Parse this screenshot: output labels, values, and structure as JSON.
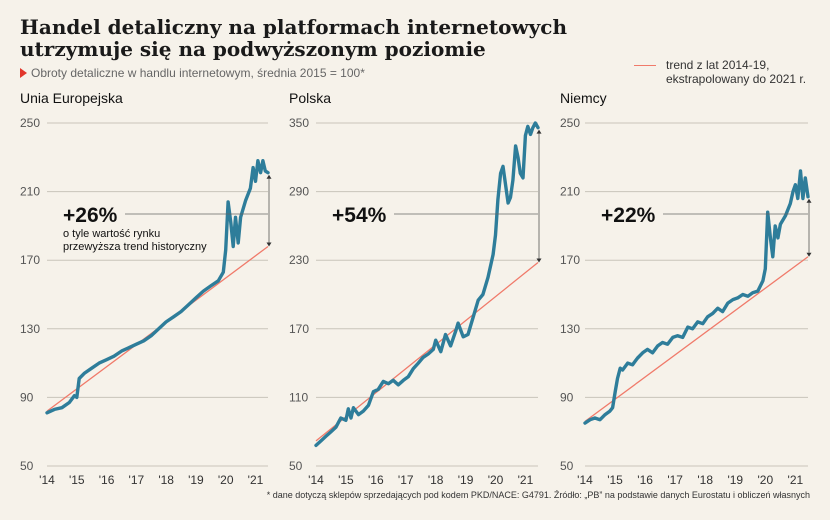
{
  "header": {
    "title": "Handel detaliczny na platformach internetowych utrzymuje się na podwyższonym poziomie",
    "subtitle": "Obroty detaliczne w handlu internetowym, średnia 2015 = 100*",
    "legend": "trend z lat 2014-19, ekstrapolowany do 2021 r."
  },
  "footnote": "* dane dotyczą sklepów sprzedających pod kodem PKD/NACE: G4791. Źródło: „PB” na podstawie danych Eurostatu i obliczeń własnych",
  "colors": {
    "series": "#2e7d9a",
    "trend": "#f07a6a",
    "grid": "#c9c4ba",
    "accent": "#e2362b",
    "background": "#f6f2ea"
  },
  "chart_data": [
    {
      "type": "line",
      "title": "Unia Europejska",
      "x_ticks": [
        "'14",
        "'15",
        "'16",
        "'17",
        "'18",
        "'19",
        "'20",
        "'21"
      ],
      "y_ticks": [
        50,
        90,
        130,
        170,
        210,
        250
      ],
      "ylim": [
        50,
        250
      ],
      "annotation": {
        "value": "+26%",
        "text_lines": [
          "o tyle wartość rynku",
          "przewyższa trend historyczny"
        ]
      },
      "trend": {
        "name": "trend z lat 2014-19, ekstrapolowany do 2021 r.",
        "x": [
          2014.0,
          2021.42
        ],
        "y": [
          82,
          178
        ]
      },
      "series": [
        {
          "x": [
            2014.0,
            2014.25,
            2014.5,
            2014.75,
            2014.92,
            2015.0,
            2015.08,
            2015.25,
            2015.5,
            2015.75,
            2016.0,
            2016.25,
            2016.5,
            2016.75,
            2017.0,
            2017.25,
            2017.5,
            2017.75,
            2018.0,
            2018.25,
            2018.5,
            2018.75,
            2019.0,
            2019.25,
            2019.5,
            2019.75,
            2019.92,
            2020.0,
            2020.08,
            2020.17,
            2020.25,
            2020.33,
            2020.42,
            2020.5,
            2020.67,
            2020.83,
            2020.92,
            2021.0,
            2021.08,
            2021.17,
            2021.25,
            2021.33,
            2021.42
          ],
          "y": [
            81,
            83,
            84,
            87,
            91,
            90,
            101,
            104,
            107,
            110,
            112,
            114,
            117,
            119,
            121,
            123,
            126,
            130,
            134,
            137,
            140,
            144,
            148,
            152,
            155,
            158,
            163,
            176,
            204,
            192,
            178,
            195,
            180,
            195,
            205,
            212,
            224,
            216,
            228,
            221,
            228,
            222,
            221
          ]
        }
      ]
    },
    {
      "type": "line",
      "title": "Polska",
      "x_ticks": [
        "'14",
        "'15",
        "'16",
        "'17",
        "'18",
        "'19",
        "'20",
        "'21"
      ],
      "y_ticks": [
        50,
        110,
        170,
        230,
        290,
        350
      ],
      "ylim": [
        50,
        350
      ],
      "annotation": {
        "value": "+54%"
      },
      "trend": {
        "name": "trend z lat 2014-19, ekstrapolowany do 2021 r.",
        "x": [
          2014.0,
          2021.42
        ],
        "y": [
          72,
          228
        ]
      },
      "series": [
        {
          "x": [
            2014.0,
            2014.17,
            2014.33,
            2014.5,
            2014.67,
            2014.83,
            2015.0,
            2015.08,
            2015.17,
            2015.25,
            2015.42,
            2015.58,
            2015.75,
            2015.92,
            2016.08,
            2016.25,
            2016.42,
            2016.58,
            2016.75,
            2016.92,
            2017.08,
            2017.25,
            2017.42,
            2017.58,
            2017.75,
            2017.92,
            2018.0,
            2018.17,
            2018.33,
            2018.5,
            2018.67,
            2018.75,
            2018.92,
            2019.08,
            2019.25,
            2019.42,
            2019.58,
            2019.75,
            2019.92,
            2020.0,
            2020.08,
            2020.17,
            2020.25,
            2020.42,
            2020.5,
            2020.58,
            2020.67,
            2020.75,
            2020.83,
            2020.92,
            2021.0,
            2021.08,
            2021.17,
            2021.25,
            2021.33,
            2021.42
          ],
          "y": [
            68,
            72,
            76,
            80,
            84,
            92,
            90,
            100,
            92,
            101,
            95,
            98,
            103,
            115,
            117,
            124,
            122,
            125,
            121,
            125,
            128,
            135,
            140,
            145,
            148,
            152,
            160,
            150,
            165,
            155,
            168,
            175,
            163,
            165,
            180,
            195,
            200,
            215,
            235,
            252,
            283,
            306,
            312,
            280,
            285,
            300,
            330,
            320,
            306,
            302,
            339,
            347,
            340,
            346,
            350,
            346
          ]
        }
      ]
    },
    {
      "type": "line",
      "title": "Niemcy",
      "x_ticks": [
        "'14",
        "'15",
        "'16",
        "'17",
        "'18",
        "'19",
        "'20",
        "'21"
      ],
      "y_ticks": [
        50,
        90,
        130,
        170,
        210,
        250
      ],
      "ylim": [
        50,
        250
      ],
      "annotation": {
        "value": "+22%"
      },
      "trend": {
        "name": "trend z lat 2014-19, ekstrapolowany do 2021 r.",
        "x": [
          2014.0,
          2021.42
        ],
        "y": [
          76,
          172
        ]
      },
      "series": [
        {
          "x": [
            2014.0,
            2014.17,
            2014.33,
            2014.5,
            2014.67,
            2014.83,
            2014.92,
            2015.0,
            2015.08,
            2015.17,
            2015.25,
            2015.42,
            2015.58,
            2015.75,
            2015.92,
            2016.08,
            2016.25,
            2016.42,
            2016.58,
            2016.75,
            2016.92,
            2017.08,
            2017.25,
            2017.42,
            2017.58,
            2017.75,
            2017.92,
            2018.08,
            2018.25,
            2018.42,
            2018.58,
            2018.75,
            2018.92,
            2019.08,
            2019.25,
            2019.42,
            2019.58,
            2019.75,
            2019.92,
            2020.0,
            2020.08,
            2020.17,
            2020.25,
            2020.33,
            2020.42,
            2020.5,
            2020.67,
            2020.83,
            2020.92,
            2021.0,
            2021.08,
            2021.17,
            2021.25,
            2021.33,
            2021.42
          ],
          "y": [
            75,
            77,
            78,
            77,
            80,
            82,
            84,
            93,
            101,
            107,
            106,
            110,
            109,
            113,
            116,
            118,
            116,
            120,
            122,
            121,
            125,
            126,
            125,
            131,
            130,
            134,
            133,
            137,
            139,
            142,
            140,
            145,
            147,
            148,
            150,
            149,
            151,
            152,
            158,
            165,
            198,
            183,
            172,
            190,
            183,
            191,
            196,
            203,
            210,
            214,
            206,
            222,
            206,
            218,
            207
          ]
        }
      ]
    }
  ]
}
